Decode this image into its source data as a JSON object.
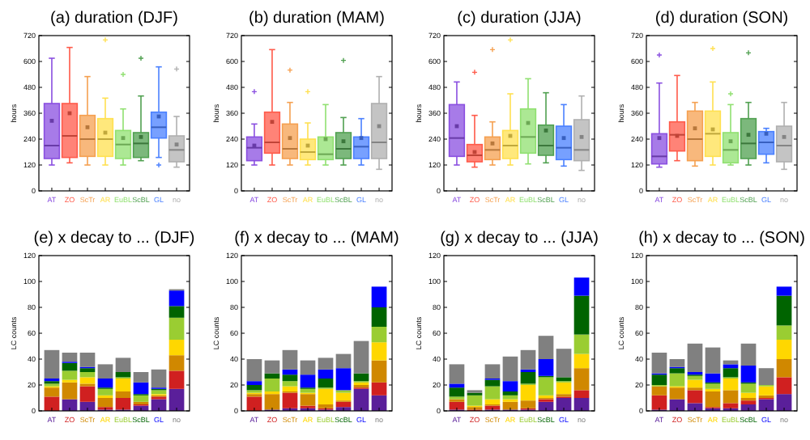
{
  "chart_data": [
    {
      "type": "box",
      "title": "(a) duration (DJF)",
      "ylabel": "hours",
      "categories": [
        "AT",
        "ZO",
        "ScTr",
        "AR",
        "EuBL",
        "ScBL",
        "GL",
        "no"
      ],
      "colors": [
        "#8a4fe0",
        "#ff5a4a",
        "#f5a050",
        "#ffe050",
        "#90e070",
        "#50a050",
        "#4a80ff",
        "#b0b0b0"
      ],
      "ylim": [
        0,
        720
      ],
      "yticks": [
        0,
        120,
        240,
        360,
        480,
        600,
        720
      ],
      "boxes": [
        {
          "low": 120,
          "q1": 150,
          "median": 210,
          "q3": 405,
          "high": 615,
          "mean": 325
        },
        {
          "low": 130,
          "q1": 155,
          "median": 255,
          "q3": 405,
          "high": 665,
          "mean": 360
        },
        {
          "low": 120,
          "q1": 160,
          "median": 240,
          "q3": 350,
          "high": 530,
          "mean": 295
        },
        {
          "low": 120,
          "q1": 160,
          "median": 240,
          "q3": 335,
          "high": 430,
          "mean": 270,
          "outliers": [
            700
          ]
        },
        {
          "low": 120,
          "q1": 150,
          "median": 215,
          "q3": 280,
          "high": 380,
          "mean": 245,
          "outliers": [
            540
          ]
        },
        {
          "low": 140,
          "q1": 155,
          "median": 220,
          "q3": 270,
          "high": 440,
          "mean": 250,
          "outliers": [
            615
          ]
        },
        {
          "low": 155,
          "q1": 245,
          "median": 295,
          "q3": 365,
          "high": 575,
          "mean": 345,
          "outliers": [
            120
          ]
        },
        {
          "low": 110,
          "q1": 135,
          "median": 190,
          "q3": 255,
          "high": 345,
          "mean": 215,
          "outliers": [
            565
          ]
        }
      ]
    },
    {
      "type": "box",
      "title": "(b) duration (MAM)",
      "ylabel": "hours",
      "categories": [
        "AT",
        "ZO",
        "ScTr",
        "AR",
        "EuBL",
        "ScBL",
        "GL",
        "no"
      ],
      "colors": [
        "#8a4fe0",
        "#ff5a4a",
        "#f5a050",
        "#ffe050",
        "#90e070",
        "#50a050",
        "#4a80ff",
        "#b0b0b0"
      ],
      "ylim": [
        0,
        720
      ],
      "yticks": [
        0,
        120,
        240,
        360,
        480,
        600,
        720
      ],
      "boxes": [
        {
          "low": 120,
          "q1": 140,
          "median": 200,
          "q3": 250,
          "high": 310,
          "mean": 210,
          "outliers": [
            460
          ]
        },
        {
          "low": 120,
          "q1": 175,
          "median": 225,
          "q3": 365,
          "high": 655,
          "mean": 320
        },
        {
          "low": 120,
          "q1": 150,
          "median": 195,
          "q3": 310,
          "high": 410,
          "mean": 245,
          "outliers": [
            560
          ]
        },
        {
          "low": 120,
          "q1": 145,
          "median": 180,
          "q3": 240,
          "high": 315,
          "mean": 210,
          "outliers": [
            460
          ]
        },
        {
          "low": 120,
          "q1": 145,
          "median": 170,
          "q3": 250,
          "high": 400,
          "mean": 240
        },
        {
          "low": 120,
          "q1": 150,
          "median": 195,
          "q3": 270,
          "high": 340,
          "mean": 230,
          "outliers": [
            605
          ]
        },
        {
          "low": 120,
          "q1": 150,
          "median": 205,
          "q3": 250,
          "high": 335,
          "mean": 245
        },
        {
          "low": 100,
          "q1": 150,
          "median": 225,
          "q3": 405,
          "high": 530,
          "mean": 300
        }
      ]
    },
    {
      "type": "box",
      "title": "(c) duration (JJA)",
      "ylabel": "hours",
      "categories": [
        "AT",
        "ZO",
        "ScTr",
        "AR",
        "EuBL",
        "ScBL",
        "GL",
        "no"
      ],
      "colors": [
        "#8a4fe0",
        "#ff5a4a",
        "#f5a050",
        "#ffe050",
        "#90e070",
        "#50a050",
        "#4a80ff",
        "#b0b0b0"
      ],
      "ylim": [
        0,
        720
      ],
      "yticks": [
        0,
        120,
        240,
        360,
        480,
        600,
        720
      ],
      "boxes": [
        {
          "low": 120,
          "q1": 160,
          "median": 245,
          "q3": 400,
          "high": 505,
          "mean": 300
        },
        {
          "low": 110,
          "q1": 135,
          "median": 165,
          "q3": 215,
          "high": 350,
          "mean": 180,
          "outliers": [
            550
          ]
        },
        {
          "low": 120,
          "q1": 145,
          "median": 190,
          "q3": 250,
          "high": 320,
          "mean": 220,
          "outliers": [
            655
          ]
        },
        {
          "low": 120,
          "q1": 150,
          "median": 210,
          "q3": 280,
          "high": 450,
          "mean": 255,
          "outliers": [
            700
          ]
        },
        {
          "low": 125,
          "q1": 175,
          "median": 250,
          "q3": 380,
          "high": 520,
          "mean": 315
        },
        {
          "low": 130,
          "q1": 165,
          "median": 210,
          "q3": 305,
          "high": 455,
          "mean": 280
        },
        {
          "low": 115,
          "q1": 145,
          "median": 200,
          "q3": 300,
          "high": 400,
          "mean": 245
        },
        {
          "low": 95,
          "q1": 140,
          "median": 190,
          "q3": 330,
          "high": 440,
          "mean": 250
        }
      ]
    },
    {
      "type": "box",
      "title": "(d) duration (SON)",
      "ylabel": "hours",
      "categories": [
        "AT",
        "ZO",
        "ScTr",
        "AR",
        "EuBL",
        "ScBL",
        "GL",
        "no"
      ],
      "colors": [
        "#8a4fe0",
        "#ff5a4a",
        "#f5a050",
        "#ffe050",
        "#90e070",
        "#50a050",
        "#4a80ff",
        "#b0b0b0"
      ],
      "ylim": [
        0,
        720
      ],
      "yticks": [
        0,
        120,
        240,
        360,
        480,
        600,
        720
      ],
      "boxes": [
        {
          "low": 110,
          "q1": 125,
          "median": 160,
          "q3": 265,
          "high": 500,
          "mean": 245,
          "outliers": [
            630
          ]
        },
        {
          "low": 140,
          "q1": 185,
          "median": 260,
          "q3": 320,
          "high": 535,
          "mean": 255
        },
        {
          "low": 115,
          "q1": 140,
          "median": 240,
          "q3": 370,
          "high": 410,
          "mean": 290
        },
        {
          "low": 120,
          "q1": 160,
          "median": 265,
          "q3": 370,
          "high": 505,
          "mean": 285,
          "outliers": [
            660
          ]
        },
        {
          "low": 120,
          "q1": 130,
          "median": 190,
          "q3": 270,
          "high": 400,
          "mean": 230,
          "outliers": [
            450
          ]
        },
        {
          "low": 120,
          "q1": 150,
          "median": 220,
          "q3": 335,
          "high": 410,
          "mean": 260,
          "outliers": [
            640
          ]
        },
        {
          "low": 130,
          "q1": 170,
          "median": 225,
          "q3": 275,
          "high": 290,
          "mean": 265
        },
        {
          "low": 100,
          "q1": 135,
          "median": 210,
          "q3": 300,
          "high": 410,
          "mean": 250
        }
      ]
    },
    {
      "type": "bar",
      "stacked": true,
      "title": "(e) x decay to ... (DJF)",
      "ylabel": "LC counts",
      "categories": [
        "AT",
        "ZO",
        "ScTr",
        "AR",
        "EuBL",
        "ScBL",
        "GL",
        "no"
      ],
      "ylim": [
        0,
        120
      ],
      "yticks": [
        0,
        20,
        40,
        60,
        80,
        100,
        120
      ],
      "series": [
        {
          "color": "#5a1f9a",
          "values": [
            0,
            9,
            7,
            1,
            1,
            4,
            9,
            17
          ]
        },
        {
          "color": "#d02020",
          "values": [
            11,
            0,
            12,
            2,
            9,
            1,
            2,
            14
          ]
        },
        {
          "color": "#d08800",
          "values": [
            7,
            13,
            2,
            7,
            5,
            2,
            1,
            12
          ]
        },
        {
          "color": "#ffd700",
          "values": [
            1,
            2,
            5,
            2,
            10,
            0,
            1,
            12
          ]
        },
        {
          "color": "#9acd32",
          "values": [
            2,
            7,
            4,
            5,
            1,
            5,
            3,
            17
          ]
        },
        {
          "color": "#006400",
          "values": [
            2,
            6,
            3,
            1,
            4,
            1,
            1,
            9
          ]
        },
        {
          "color": "#0000ff",
          "values": [
            2,
            1,
            1,
            7,
            0,
            9,
            1,
            12
          ]
        },
        {
          "color": "#808080",
          "values": [
            22,
            7,
            11,
            11,
            11,
            8,
            14,
            1
          ]
        }
      ]
    },
    {
      "type": "bar",
      "stacked": true,
      "title": "(f) x decay to ... (MAM)",
      "ylabel": "LC counts",
      "categories": [
        "AT",
        "ZO",
        "ScTr",
        "AR",
        "EuBL",
        "ScBL",
        "GL",
        "no"
      ],
      "ylim": [
        0,
        120
      ],
      "yticks": [
        0,
        20,
        40,
        60,
        80,
        100,
        120
      ],
      "series": [
        {
          "color": "#5a1f9a",
          "values": [
            0,
            1,
            2,
            2,
            1,
            3,
            17,
            12
          ]
        },
        {
          "color": "#d02020",
          "values": [
            11,
            0,
            12,
            2,
            1,
            4,
            1,
            10
          ]
        },
        {
          "color": "#d08800",
          "values": [
            2,
            12,
            1,
            9,
            3,
            1,
            2,
            17
          ]
        },
        {
          "color": "#ffd700",
          "values": [
            1,
            2,
            4,
            1,
            12,
            6,
            2,
            14
          ]
        },
        {
          "color": "#9acd32",
          "values": [
            2,
            10,
            4,
            3,
            1,
            2,
            1,
            12
          ]
        },
        {
          "color": "#006400",
          "values": [
            4,
            4,
            5,
            1,
            7,
            0,
            6,
            15
          ]
        },
        {
          "color": "#0000ff",
          "values": [
            3,
            0,
            4,
            10,
            7,
            17,
            0,
            16
          ]
        },
        {
          "color": "#808080",
          "values": [
            17,
            10,
            15,
            11,
            9,
            11,
            25,
            0
          ]
        }
      ]
    },
    {
      "type": "bar",
      "stacked": true,
      "title": "(g) x decay to ... (JJA)",
      "ylabel": "LC counts",
      "categories": [
        "AT",
        "ZO",
        "ScTr",
        "AR",
        "EuBL",
        "ScBL",
        "GL",
        "no"
      ],
      "ylim": [
        0,
        120
      ],
      "yticks": [
        0,
        20,
        40,
        60,
        80,
        100,
        120
      ],
      "series": [
        {
          "color": "#5a1f9a",
          "values": [
            1,
            0,
            1,
            1,
            1,
            7,
            10,
            10
          ]
        },
        {
          "color": "#d02020",
          "values": [
            6,
            1,
            3,
            0,
            1,
            2,
            1,
            6
          ]
        },
        {
          "color": "#d08800",
          "values": [
            2,
            2,
            1,
            6,
            6,
            1,
            2,
            17
          ]
        },
        {
          "color": "#ffd700",
          "values": [
            0,
            1,
            4,
            2,
            12,
            2,
            9,
            11
          ]
        },
        {
          "color": "#9acd32",
          "values": [
            2,
            8,
            10,
            3,
            1,
            14,
            1,
            15
          ]
        },
        {
          "color": "#006400",
          "values": [
            7,
            2,
            5,
            3,
            9,
            1,
            3,
            30
          ]
        },
        {
          "color": "#0000ff",
          "values": [
            3,
            0,
            1,
            8,
            2,
            13,
            0,
            14
          ]
        },
        {
          "color": "#808080",
          "values": [
            15,
            2,
            11,
            19,
            15,
            18,
            22,
            0
          ]
        }
      ]
    },
    {
      "type": "bar",
      "stacked": true,
      "title": "(h) x decay to ... (SON)",
      "ylabel": "LC counts",
      "categories": [
        "AT",
        "ZO",
        "ScTr",
        "AR",
        "EuBL",
        "ScBL",
        "GL",
        "no"
      ],
      "ylim": [
        0,
        120
      ],
      "yticks": [
        0,
        20,
        40,
        60,
        80,
        100,
        120
      ],
      "series": [
        {
          "color": "#5a1f9a",
          "values": [
            1,
            9,
            6,
            2,
            2,
            5,
            9,
            13
          ]
        },
        {
          "color": "#d02020",
          "values": [
            11,
            0,
            10,
            1,
            4,
            3,
            1,
            13
          ]
        },
        {
          "color": "#d08800",
          "values": [
            7,
            9,
            2,
            12,
            10,
            2,
            2,
            14
          ]
        },
        {
          "color": "#ffd700",
          "values": [
            0,
            1,
            6,
            2,
            9,
            4,
            7,
            15
          ]
        },
        {
          "color": "#9acd32",
          "values": [
            1,
            10,
            3,
            4,
            1,
            7,
            1,
            11
          ]
        },
        {
          "color": "#006400",
          "values": [
            8,
            4,
            1,
            1,
            7,
            1,
            0,
            23
          ]
        },
        {
          "color": "#0000ff",
          "values": [
            1,
            1,
            2,
            7,
            3,
            13,
            0,
            7
          ]
        },
        {
          "color": "#808080",
          "values": [
            16,
            6,
            22,
            20,
            3,
            17,
            13,
            0
          ]
        }
      ]
    }
  ]
}
